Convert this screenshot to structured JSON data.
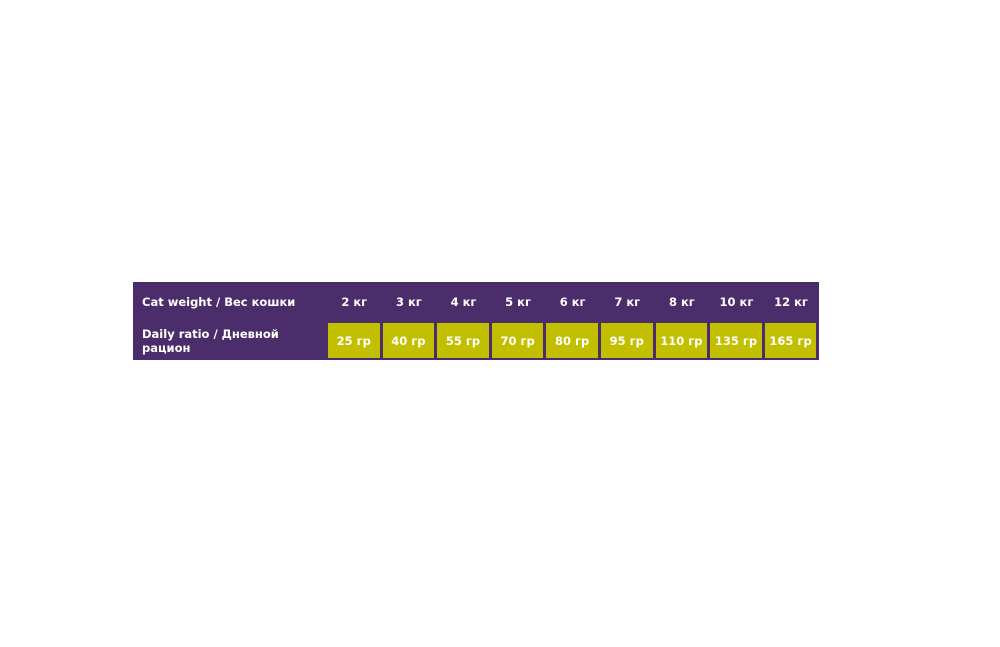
{
  "colors": {
    "header_bg": "#4b2d6b",
    "value_bg": "#c2bf00",
    "text": "#ffffff"
  },
  "table": {
    "weight_label": "Cat weight / Вес кошки",
    "ratio_label": "Daily ratio / Дневной рацион",
    "weights": [
      "2 кг",
      "3 кг",
      "4 кг",
      "5 кг",
      "6 кг",
      "7 кг",
      "8 кг",
      "10 кг",
      "12 кг"
    ],
    "ratios": [
      "25 гр",
      "40 гр",
      "55 гр",
      "70 гр",
      "80 гр",
      "95 гр",
      "110 гр",
      "135 гр",
      "165 гр"
    ]
  }
}
